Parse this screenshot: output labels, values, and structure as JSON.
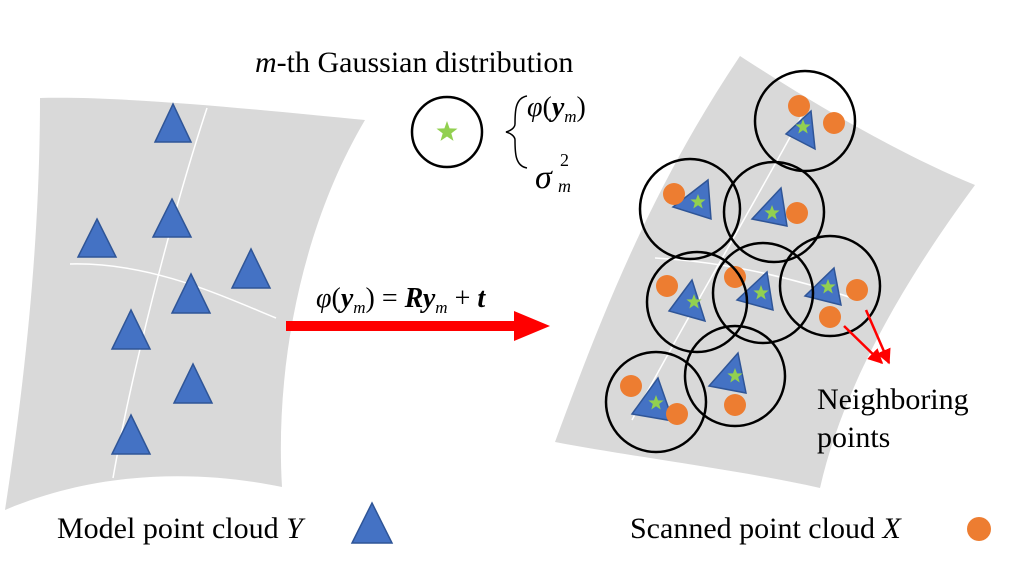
{
  "labels": {
    "gaussian_title_var": "m",
    "gaussian_title_rest": "-th Gaussian distribution",
    "phi": "φ",
    "y": "y",
    "sub_m": "m",
    "sigma": "σ",
    "sup_2": "2",
    "transform_rhs_R": "R",
    "transform_rhs_plus": "+",
    "transform_rhs_t": "t",
    "neighboring_line1": "Neighboring",
    "neighboring_line2": "points",
    "model_caption": "Model point cloud ",
    "model_var": "Y",
    "scanned_caption": "Scanned point cloud ",
    "scanned_var": "X"
  },
  "colors": {
    "surface": "#d9d9d9",
    "triangle_fill": "#4472c4",
    "triangle_stroke": "#2f5597",
    "point": "#ed7d31",
    "star": "#92d050",
    "arrow": "#ff0000",
    "circle": "#000000"
  }
}
